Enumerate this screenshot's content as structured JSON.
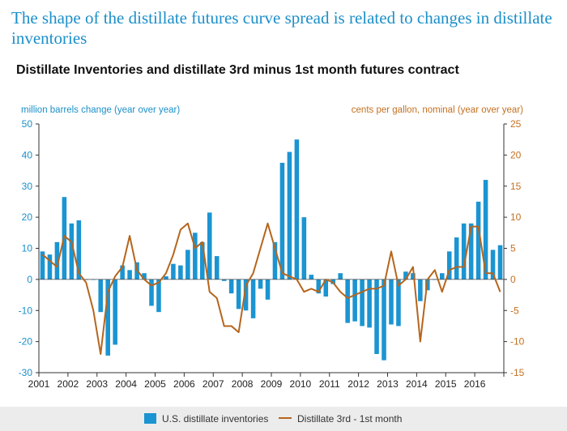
{
  "slide": {
    "title": "The shape of the distillate futures curve spread is related to changes in distillate inventories"
  },
  "chart_data": {
    "type": "bar",
    "title": "Distillate Inventories and distillate 3rd minus 1st month futures contract",
    "ylabel": "million barrels change (year over year)",
    "y2label": "cents per gallon, nominal (year over year)",
    "ylim": [
      -30,
      50
    ],
    "y2lim": [
      -15,
      25
    ],
    "yticks": [
      "50",
      "40",
      "30",
      "20",
      "10",
      "0",
      "-10",
      "-20",
      "-30"
    ],
    "y2ticks": [
      "25",
      "20",
      "15",
      "10",
      "5",
      "0",
      "-5",
      "-10",
      "-15"
    ],
    "x_tick_labels": [
      "2001",
      "2002",
      "2003",
      "2004",
      "2005",
      "2006",
      "2007",
      "2008",
      "2009",
      "2010",
      "2011",
      "2012",
      "2013",
      "2014",
      "2015",
      "2016"
    ],
    "grid": false,
    "legend_position": "bottom",
    "colors": {
      "bars": "#1b94d2",
      "line": "#b5651d",
      "left_axis": "#1b8fc9",
      "right_axis": "#c47020"
    },
    "series": [
      {
        "name": "U.S. distillate inventories",
        "axis": "left",
        "type": "bar",
        "x": [
          2001.0,
          2001.25,
          2001.5,
          2001.75,
          2002.0,
          2002.25,
          2002.5,
          2002.75,
          2003.0,
          2003.25,
          2003.5,
          2003.75,
          2004.0,
          2004.25,
          2004.5,
          2004.75,
          2005.0,
          2005.25,
          2005.5,
          2005.75,
          2006.0,
          2006.25,
          2006.5,
          2006.75,
          2007.0,
          2007.25,
          2007.5,
          2007.75,
          2008.0,
          2008.25,
          2008.5,
          2008.75,
          2009.0,
          2009.25,
          2009.5,
          2009.75,
          2010.0,
          2010.25,
          2010.5,
          2010.75,
          2011.0,
          2011.25,
          2011.5,
          2011.75,
          2012.0,
          2012.25,
          2012.5,
          2012.75,
          2013.0,
          2013.25,
          2013.5,
          2013.75,
          2014.0,
          2014.25,
          2014.5,
          2014.75,
          2015.0,
          2015.25,
          2015.5,
          2015.75,
          2016.0,
          2016.25,
          2016.5,
          2016.75
        ],
        "values": [
          9,
          8,
          12,
          26.5,
          18,
          19,
          0,
          0,
          -10.5,
          -24.5,
          -21,
          4.5,
          3,
          5.5,
          2,
          -8.5,
          -10.5,
          1,
          5,
          4.5,
          9.5,
          15,
          12,
          21.5,
          7.5,
          -0.5,
          -4.5,
          -9.5,
          -10,
          -12.5,
          -3,
          -6.5,
          12,
          37.5,
          41,
          45,
          20,
          1.5,
          -4.5,
          -5.5,
          -1.5,
          2,
          -14,
          -13.5,
          -15,
          -15.5,
          -24,
          -26,
          -14.5,
          -15,
          2.5,
          2,
          -7,
          -3.5,
          0,
          2,
          9,
          13.5,
          18,
          18,
          25,
          32,
          9.5,
          11
        ]
      },
      {
        "name": "Distillate 3rd - 1st month",
        "axis": "right",
        "type": "line",
        "x": [
          2001.0,
          2001.25,
          2001.5,
          2001.75,
          2002.0,
          2002.25,
          2002.5,
          2002.75,
          2003.0,
          2003.25,
          2003.5,
          2003.75,
          2004.0,
          2004.25,
          2004.5,
          2004.75,
          2005.0,
          2005.25,
          2005.5,
          2005.75,
          2006.0,
          2006.25,
          2006.5,
          2006.75,
          2007.0,
          2007.25,
          2007.5,
          2007.75,
          2008.0,
          2008.25,
          2008.5,
          2008.75,
          2009.0,
          2009.25,
          2009.5,
          2009.75,
          2010.0,
          2010.25,
          2010.5,
          2010.75,
          2011.0,
          2011.25,
          2011.5,
          2011.75,
          2012.0,
          2012.25,
          2012.5,
          2012.75,
          2013.0,
          2013.25,
          2013.5,
          2013.75,
          2014.0,
          2014.25,
          2014.5,
          2014.75,
          2015.0,
          2015.25,
          2015.5,
          2015.75,
          2016.0,
          2016.25,
          2016.5,
          2016.75
        ],
        "values": [
          4,
          3,
          2,
          7,
          6,
          1,
          -0.5,
          -5,
          -12,
          -2,
          0.5,
          2,
          7,
          1.5,
          0,
          -1,
          -0.5,
          1,
          4,
          8,
          9,
          5,
          6,
          -2,
          -3,
          -7.5,
          -7.5,
          -8.5,
          -1,
          1,
          5,
          9,
          5,
          1,
          0.5,
          0,
          -2,
          -1.5,
          -2,
          0,
          -0.5,
          -2,
          -3,
          -2.5,
          -2,
          -1.5,
          -1.5,
          -1,
          4.5,
          -1,
          0,
          2,
          -10,
          0,
          1.5,
          -2,
          1.5,
          2,
          2,
          8.5,
          8.5,
          1,
          1,
          -2
        ]
      }
    ]
  }
}
